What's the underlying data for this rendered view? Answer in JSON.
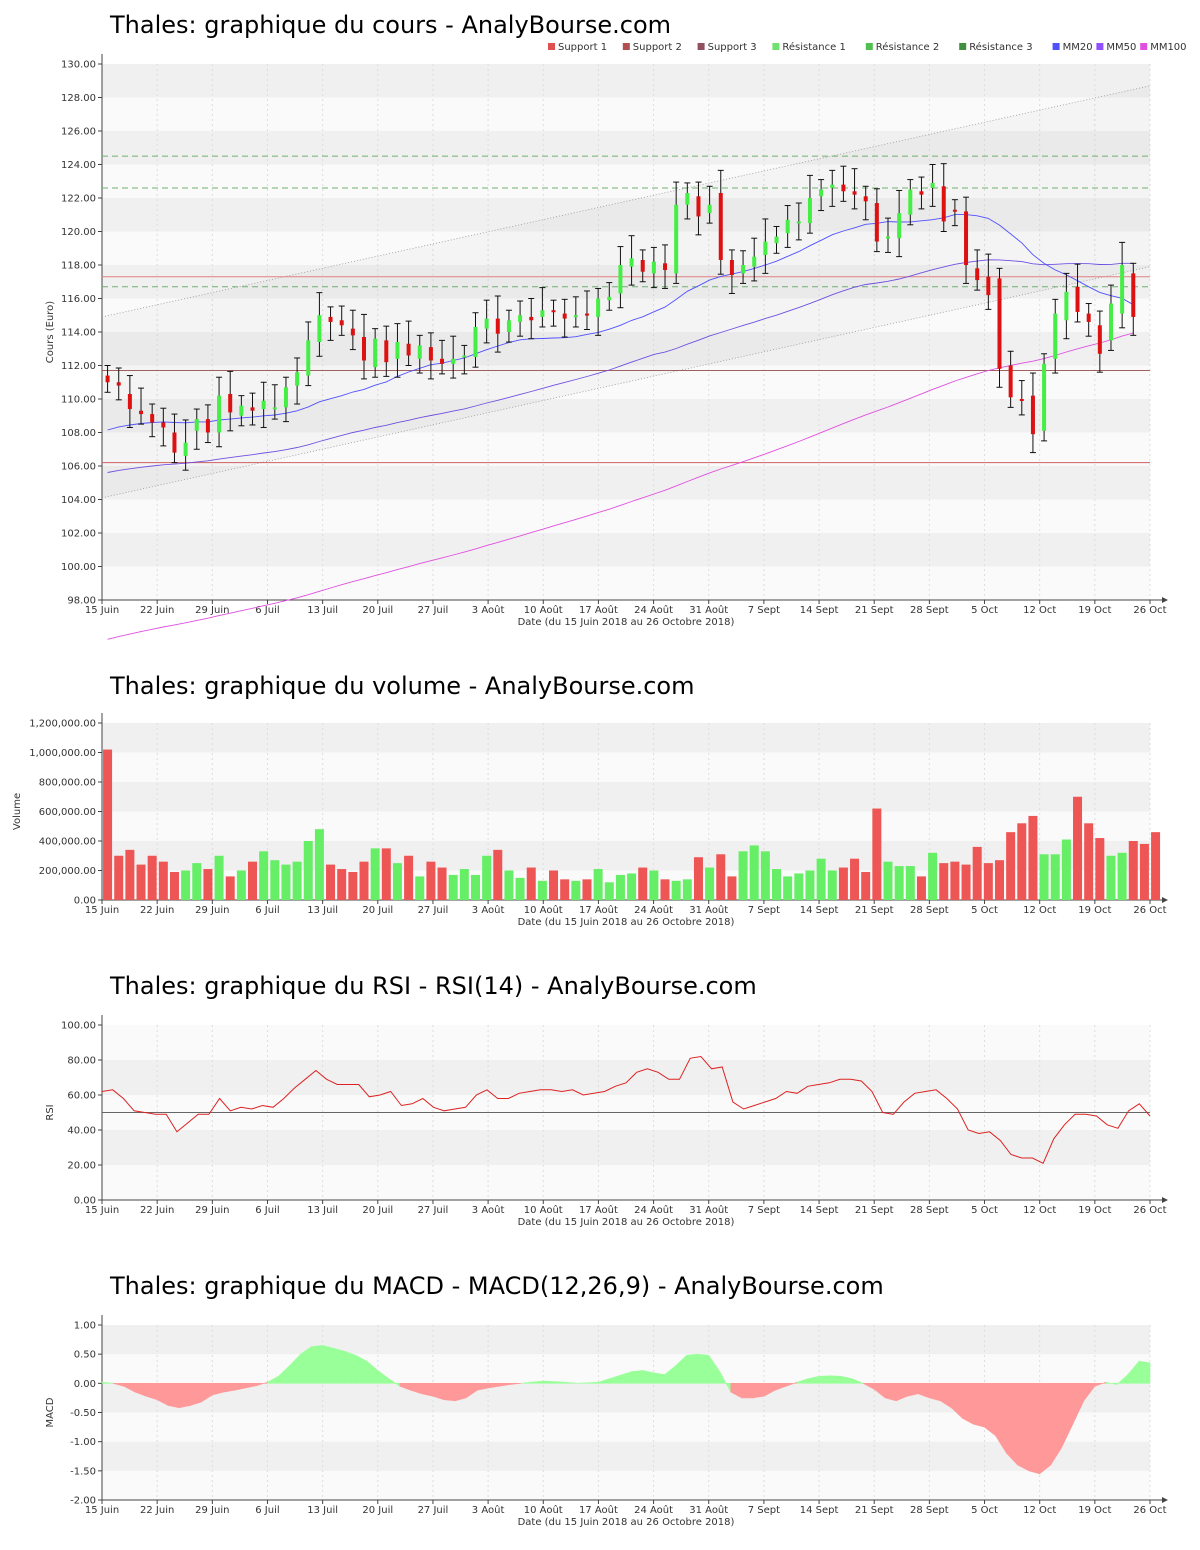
{
  "x_ticks": [
    "15 Juin",
    "22 Juin",
    "29 Juin",
    "6 Juil",
    "13 Juil",
    "20 Juil",
    "27 Juil",
    "3 Août",
    "10 Août",
    "17 Août",
    "24 Août",
    "31 Août",
    "7 Sept",
    "14 Sept",
    "21 Sept",
    "28 Sept",
    "5 Oct",
    "12 Oct",
    "19 Oct",
    "26 Oct"
  ],
  "xlabel": "Date (du 15 Juin 2018 au 26 Octobre 2018)",
  "legend": [
    {
      "label": "Support 1",
      "color": "#e05050"
    },
    {
      "label": "Support 2",
      "color": "#b05050"
    },
    {
      "label": "Support 3",
      "color": "#905060"
    },
    {
      "label": "Résistance 1",
      "color": "#70e070"
    },
    {
      "label": "Résistance 2",
      "color": "#50c050"
    },
    {
      "label": "Résistance 3",
      "color": "#409040"
    },
    {
      "label": "MM20",
      "color": "#5050ff"
    },
    {
      "label": "MM50",
      "color": "#9050ff"
    },
    {
      "label": "MM100",
      "color": "#e050e0"
    }
  ],
  "chart_data": [
    {
      "type": "candlestick",
      "title": "Thales: graphique du cours - AnalyBourse.com",
      "ylabel": "Cours (Euro)",
      "xlabel": "Date (du 15 Juin 2018 au 26 Octobre 2018)",
      "ylim": [
        98,
        130
      ],
      "y_ticks": [
        "98.00",
        "100.00",
        "102.00",
        "104.00",
        "106.00",
        "108.00",
        "110.00",
        "112.00",
        "114.00",
        "116.00",
        "118.00",
        "120.00",
        "122.00",
        "124.00",
        "126.00",
        "128.00",
        "130.00"
      ],
      "levels": {
        "support_1": 106.2,
        "support_2": 111.7,
        "support_3": 117.3,
        "resistance_1": 116.7,
        "resistance_2": 122.6,
        "resistance_3": 124.5
      },
      "channel": {
        "upper": [
          114.9,
          128.7
        ],
        "lower": [
          104.1,
          117.9
        ],
        "mid": [
          109.5,
          123.3
        ]
      },
      "close": [
        111.0,
        110.8,
        109.4,
        109.1,
        108.6,
        108.3,
        106.8,
        107.4,
        108.8,
        108.0,
        110.2,
        109.2,
        109.6,
        109.3,
        109.9,
        109.5,
        110.7,
        111.6,
        113.5,
        115.0,
        114.6,
        114.4,
        113.8,
        112.3,
        113.6,
        112.2,
        113.4,
        112.6,
        113.2,
        112.3,
        112.1,
        112.4,
        112.6,
        114.3,
        114.8,
        113.9,
        114.7,
        115.0,
        114.7,
        115.3,
        115.2,
        114.8,
        115.0,
        115.0,
        116.0,
        116.1,
        118.0,
        118.4,
        117.6,
        118.2,
        117.7,
        121.6,
        122.3,
        120.9,
        121.6,
        118.3,
        117.4,
        118.0,
        118.5,
        119.4,
        119.7,
        120.7,
        120.6,
        122.0,
        122.5,
        122.8,
        122.4,
        122.2,
        121.8,
        119.4,
        119.7,
        121.1,
        122.5,
        122.2,
        122.9,
        120.6,
        121.2,
        118.0,
        117.1,
        116.2,
        111.8,
        110.1,
        109.9,
        107.9,
        112.1,
        115.1,
        116.4,
        115.2,
        114.6,
        112.7,
        115.7,
        118.0,
        114.9
      ],
      "open": [
        111.4,
        111.0,
        110.3,
        109.3,
        109.1,
        108.6,
        108.0,
        106.6,
        108.1,
        108.8,
        108.0,
        110.3,
        109.0,
        109.5,
        109.4,
        109.4,
        109.5,
        110.8,
        111.4,
        113.4,
        114.9,
        114.7,
        114.2,
        113.7,
        111.9,
        113.5,
        112.4,
        113.3,
        112.4,
        113.1,
        112.4,
        112.1,
        112.6,
        112.5,
        114.2,
        114.8,
        114.0,
        114.6,
        114.9,
        114.9,
        115.3,
        115.1,
        114.9,
        115.1,
        114.9,
        115.9,
        116.3,
        117.9,
        118.3,
        117.5,
        118.1,
        117.5,
        121.6,
        122.1,
        121.1,
        122.3,
        118.3,
        117.5,
        117.9,
        118.6,
        119.3,
        119.9,
        120.6,
        120.5,
        122.1,
        122.6,
        122.8,
        122.4,
        122.1,
        121.7,
        119.6,
        119.6,
        121.0,
        122.4,
        122.6,
        122.7,
        121.3,
        121.2,
        117.8,
        117.3,
        117.2,
        112.0,
        110.0,
        110.2,
        108.1,
        112.4,
        114.7,
        116.7,
        115.1,
        114.4,
        113.5,
        115.1,
        117.5
      ]
    },
    {
      "type": "bar",
      "title": "Thales: graphique du volume - AnalyBourse.com",
      "ylabel": "Volume",
      "ylim": [
        0,
        1200000
      ],
      "y_ticks": [
        "0.00",
        "200,000.00",
        "400,000.00",
        "600,000.00",
        "800,000.00",
        "1,000,000.00",
        "1,200,000.00"
      ],
      "values": [
        1020000,
        300000,
        340000,
        240000,
        300000,
        260000,
        190000,
        200000,
        250000,
        210000,
        300000,
        160000,
        200000,
        260000,
        330000,
        270000,
        240000,
        260000,
        400000,
        480000,
        240000,
        210000,
        190000,
        260000,
        350000,
        350000,
        250000,
        300000,
        160000,
        260000,
        220000,
        170000,
        210000,
        170000,
        300000,
        340000,
        200000,
        150000,
        220000,
        130000,
        200000,
        140000,
        130000,
        140000,
        210000,
        120000,
        170000,
        180000,
        220000,
        200000,
        140000,
        130000,
        140000,
        290000,
        220000,
        310000,
        160000,
        330000,
        370000,
        330000,
        210000,
        160000,
        180000,
        200000,
        280000,
        200000,
        220000,
        280000,
        190000,
        620000,
        260000,
        230000,
        230000,
        160000,
        320000,
        250000,
        260000,
        240000,
        360000,
        250000,
        270000,
        460000,
        520000,
        570000,
        310000,
        310000,
        410000,
        700000,
        520000,
        420000,
        300000,
        320000,
        400000,
        380000,
        460000
      ]
    },
    {
      "type": "line",
      "title": "Thales: graphique du RSI - RSI(14) - AnalyBourse.com",
      "ylabel": "RSI",
      "ylim": [
        0,
        100
      ],
      "y_ticks": [
        "0.00",
        "20.00",
        "40.00",
        "60.00",
        "80.00",
        "100.00"
      ],
      "reference_line": 50,
      "values": [
        62,
        63,
        58,
        51,
        50,
        49,
        49,
        39,
        44,
        49,
        49,
        58,
        51,
        53,
        52,
        54,
        53,
        58,
        64,
        69,
        74,
        69,
        66,
        66,
        66,
        59,
        60,
        62,
        54,
        55,
        58,
        53,
        51,
        52,
        53,
        60,
        63,
        58,
        58,
        61,
        62,
        63,
        63,
        62,
        63,
        60,
        61,
        62,
        65,
        67,
        73,
        75,
        73,
        69,
        69,
        81,
        82,
        75,
        76,
        56,
        52,
        54,
        56,
        58,
        62,
        61,
        65,
        66,
        67,
        69,
        69,
        68,
        62,
        50,
        49,
        56,
        61,
        62,
        63,
        58,
        52,
        40,
        38,
        39,
        34,
        26,
        24,
        24,
        21,
        35,
        43,
        49,
        49,
        48,
        43,
        41,
        51,
        55,
        48
      ]
    },
    {
      "type": "area",
      "title": "Thales: graphique du MACD - MACD(12,26,9) - AnalyBourse.com",
      "ylabel": "MACD",
      "ylim": [
        -2.0,
        1.0
      ],
      "y_ticks": [
        "-2.00",
        "-1.50",
        "-1.00",
        "-0.50",
        "0.00",
        "0.50",
        "1.00"
      ],
      "values": [
        0.02,
        0.0,
        -0.05,
        -0.15,
        -0.22,
        -0.28,
        -0.38,
        -0.42,
        -0.38,
        -0.32,
        -0.2,
        -0.15,
        -0.12,
        -0.08,
        -0.04,
        0.02,
        0.12,
        0.3,
        0.5,
        0.63,
        0.65,
        0.6,
        0.55,
        0.48,
        0.38,
        0.22,
        0.08,
        -0.05,
        -0.12,
        -0.18,
        -0.22,
        -0.28,
        -0.3,
        -0.25,
        -0.12,
        -0.08,
        -0.05,
        -0.02,
        0.0,
        0.02,
        0.04,
        0.03,
        0.02,
        0.0,
        0.01,
        0.02,
        0.08,
        0.14,
        0.2,
        0.22,
        0.18,
        0.15,
        0.3,
        0.48,
        0.5,
        0.48,
        0.2,
        -0.15,
        -0.25,
        -0.25,
        -0.22,
        -0.12,
        -0.05,
        0.02,
        0.08,
        0.12,
        0.13,
        0.12,
        0.08,
        0.0,
        -0.1,
        -0.25,
        -0.3,
        -0.22,
        -0.18,
        -0.25,
        -0.3,
        -0.42,
        -0.6,
        -0.7,
        -0.75,
        -0.9,
        -1.2,
        -1.4,
        -1.5,
        -1.55,
        -1.4,
        -1.1,
        -0.7,
        -0.3,
        -0.05,
        0.02,
        -0.02,
        0.15,
        0.38,
        0.35
      ]
    }
  ]
}
